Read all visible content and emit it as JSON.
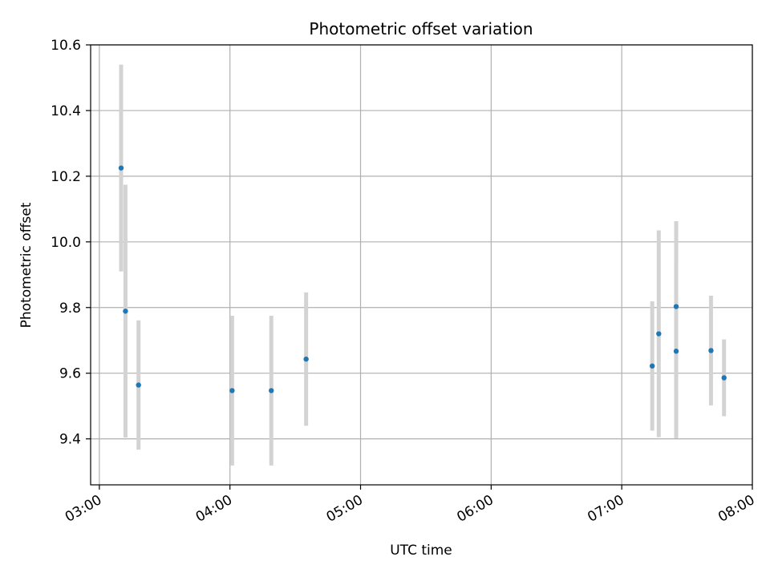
{
  "chart_data": {
    "type": "scatter",
    "title": "Photometric offset variation",
    "xlabel": "UTC time",
    "ylabel": "Photometric offset",
    "xlim": [
      "02:56",
      "08:00"
    ],
    "ylim": [
      9.26,
      10.6
    ],
    "x_ticks": [
      "03:00",
      "04:00",
      "05:00",
      "06:00",
      "07:00",
      "08:00"
    ],
    "y_ticks": [
      "9.4",
      "9.6",
      "9.8",
      "10.0",
      "10.2",
      "10.4",
      "10.6"
    ],
    "grid": true,
    "colors": {
      "point": "#1f77b4",
      "errorbar": "#d3d3d3",
      "grid": "#b0b0b0"
    },
    "series": [
      {
        "points": [
          {
            "time": "03:10",
            "y": 10.225,
            "err": 0.315
          },
          {
            "time": "03:12",
            "y": 9.789,
            "err": 0.385
          },
          {
            "time": "03:18",
            "y": 9.564,
            "err": 0.197
          },
          {
            "time": "04:01",
            "y": 9.547,
            "err": 0.228
          },
          {
            "time": "04:19",
            "y": 9.547,
            "err": 0.228
          },
          {
            "time": "04:35",
            "y": 9.643,
            "err": 0.203
          },
          {
            "time": "07:14",
            "y": 9.622,
            "err": 0.197
          },
          {
            "time": "07:17",
            "y": 9.72,
            "err": 0.315
          },
          {
            "time": "07:25",
            "y": 9.803,
            "err": 0.26
          },
          {
            "time": "07:25",
            "y": 9.667,
            "err": 0.265
          },
          {
            "time": "07:41",
            "y": 9.669,
            "err": 0.167
          },
          {
            "time": "07:47",
            "y": 9.586,
            "err": 0.117
          }
        ]
      }
    ]
  }
}
